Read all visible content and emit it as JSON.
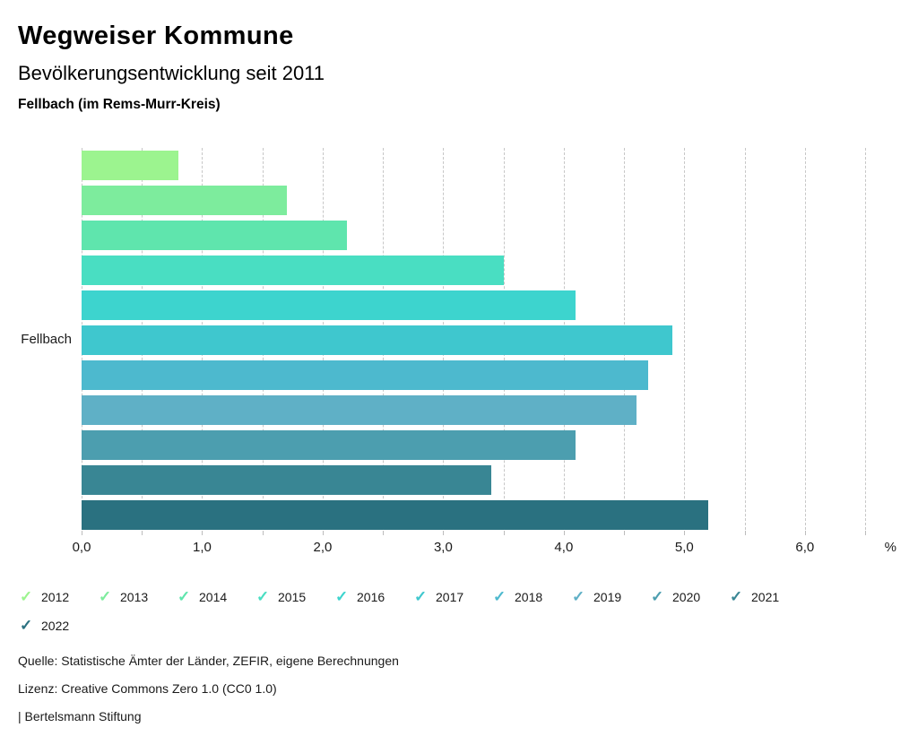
{
  "header": {
    "title": "Wegweiser Kommune",
    "subtitle": "Bevölkerungsentwicklung seit 2011",
    "region": "Fellbach (im Rems-Murr-Kreis)"
  },
  "chart_data": {
    "type": "bar",
    "orientation": "horizontal",
    "title": "Bevölkerungsentwicklung seit 2011",
    "group_label": "Fellbach",
    "unit": "%",
    "categories": [
      "2012",
      "2013",
      "2014",
      "2015",
      "2016",
      "2017",
      "2018",
      "2019",
      "2020",
      "2021",
      "2022"
    ],
    "values": [
      0.8,
      1.7,
      2.2,
      3.5,
      4.1,
      4.9,
      4.7,
      4.6,
      4.1,
      3.4,
      5.2
    ],
    "colors": [
      "#9cf48f",
      "#7dec9d",
      "#5fe5ad",
      "#49dec2",
      "#3dd4ce",
      "#3fc7ce",
      "#4db9ce",
      "#5fb0c6",
      "#4c9eaf",
      "#398694",
      "#2a7180"
    ],
    "xlim": [
      0,
      6.76
    ],
    "gridline_values": [
      0,
      0.5,
      1,
      1.5,
      2,
      2.5,
      3,
      3.5,
      4,
      4.5,
      5,
      5.5,
      6,
      6.5
    ],
    "x_tick_values": [
      0,
      1,
      2,
      3,
      4,
      5,
      6
    ],
    "x_tick_labels": [
      "0,0",
      "1,0",
      "2,0",
      "3,0",
      "4,0",
      "5,0",
      "6,0"
    ],
    "grid": "dashed-vertical",
    "legend_position": "bottom"
  },
  "legend": {
    "items_per_row": 10,
    "items": [
      {
        "label": "2012",
        "color": "#9cf48f"
      },
      {
        "label": "2013",
        "color": "#7dec9d"
      },
      {
        "label": "2014",
        "color": "#5fe5ad"
      },
      {
        "label": "2015",
        "color": "#49dec2"
      },
      {
        "label": "2016",
        "color": "#3dd4ce"
      },
      {
        "label": "2017",
        "color": "#3fc7ce"
      },
      {
        "label": "2018",
        "color": "#4db9ce"
      },
      {
        "label": "2019",
        "color": "#5fb0c6"
      },
      {
        "label": "2020",
        "color": "#4c9eaf"
      },
      {
        "label": "2021",
        "color": "#398694"
      },
      {
        "label": "2022",
        "color": "#2a7180"
      }
    ],
    "check_icon_glyph": "✓"
  },
  "footer": {
    "source": "Quelle: Statistische Ämter der Länder, ZEFIR, eigene Berechnungen",
    "license": "Lizenz: Creative Commons Zero 1.0 (CC0 1.0)",
    "attribution": "| Bertelsmann Stiftung"
  }
}
